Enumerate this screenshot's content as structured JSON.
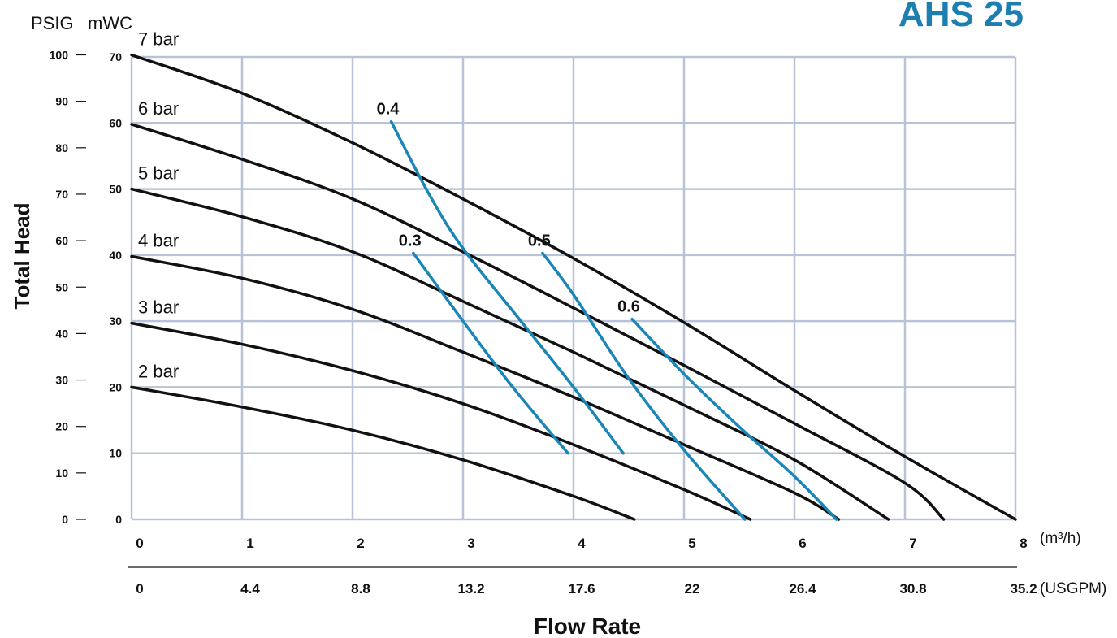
{
  "chart_data": {
    "type": "line",
    "title": "AHS 25",
    "xlabel": "Flow Rate",
    "ylabel": "Total Head",
    "x_unit_primary": "(m³/h)",
    "x_unit_secondary": "(USGPM)",
    "y_unit_left": "PSIG",
    "y_unit_right": "mWC",
    "x_ticks_m3h": [
      "0",
      "1",
      "2",
      "3",
      "4",
      "5",
      "6",
      "7",
      "8"
    ],
    "x_ticks_usgpm": [
      "0",
      "4.4",
      "8.8",
      "13.2",
      "17.6",
      "22",
      "26.4",
      "30.8",
      "35.2"
    ],
    "y_ticks_mwc": [
      "0",
      "10",
      "20",
      "30",
      "40",
      "50",
      "60",
      "70"
    ],
    "y_ticks_psig": [
      "0",
      "10",
      "20",
      "30",
      "40",
      "50",
      "60",
      "70",
      "80",
      "90",
      "100"
    ],
    "xlim": [
      0,
      8
    ],
    "ylim": [
      0,
      70
    ],
    "grid": true,
    "pressure_curves": [
      {
        "name": "7 bar",
        "points": [
          [
            0,
            70.3
          ],
          [
            1,
            64.5
          ],
          [
            2,
            57
          ],
          [
            3,
            48.5
          ],
          [
            4,
            39.5
          ],
          [
            5,
            29.8
          ],
          [
            6,
            19.5
          ],
          [
            7,
            9.5
          ],
          [
            8,
            0
          ]
        ]
      },
      {
        "name": "6 bar",
        "points": [
          [
            0,
            59.8
          ],
          [
            1,
            54.5
          ],
          [
            2,
            48.5
          ],
          [
            3,
            40.5
          ],
          [
            4,
            32
          ],
          [
            5,
            23.3
          ],
          [
            6,
            14.5
          ],
          [
            7,
            5.5
          ],
          [
            7.35,
            0
          ]
        ]
      },
      {
        "name": "5 bar",
        "points": [
          [
            0,
            50
          ],
          [
            1,
            45.8
          ],
          [
            2,
            40.5
          ],
          [
            3,
            33
          ],
          [
            4,
            25.3
          ],
          [
            5,
            17.3
          ],
          [
            6,
            9
          ],
          [
            6.85,
            0
          ]
        ]
      },
      {
        "name": "4 bar",
        "points": [
          [
            0,
            39.8
          ],
          [
            1,
            36.5
          ],
          [
            2,
            31.8
          ],
          [
            3,
            25.3
          ],
          [
            4,
            18.5
          ],
          [
            5,
            11.3
          ],
          [
            6,
            4
          ],
          [
            6.4,
            0
          ]
        ]
      },
      {
        "name": "3 bar",
        "points": [
          [
            0,
            29.7
          ],
          [
            1,
            26.5
          ],
          [
            2,
            22.5
          ],
          [
            3,
            17.5
          ],
          [
            4,
            11.3
          ],
          [
            5,
            4.5
          ],
          [
            5.6,
            0
          ]
        ]
      },
      {
        "name": "2 bar",
        "points": [
          [
            0,
            20
          ],
          [
            1,
            17
          ],
          [
            2,
            13.5
          ],
          [
            3,
            9
          ],
          [
            4,
            3.5
          ],
          [
            4.55,
            0
          ]
        ]
      }
    ],
    "air_curves": [
      {
        "name": "0.3",
        "points": [
          [
            2.55,
            40.3
          ],
          [
            3,
            30
          ],
          [
            3.45,
            20
          ],
          [
            3.95,
            10
          ]
        ]
      },
      {
        "name": "0.4",
        "points": [
          [
            2.35,
            60.2
          ],
          [
            2.7,
            49
          ],
          [
            3,
            41
          ],
          [
            3.5,
            30.5
          ],
          [
            4,
            20
          ],
          [
            4.45,
            10
          ]
        ]
      },
      {
        "name": "0.5",
        "points": [
          [
            3.72,
            40.3
          ],
          [
            4,
            34
          ],
          [
            4.5,
            21.3
          ],
          [
            5,
            10.5
          ],
          [
            5.55,
            0
          ]
        ]
      },
      {
        "name": "0.6",
        "points": [
          [
            4.53,
            30.3
          ],
          [
            5,
            22
          ],
          [
            5.5,
            14
          ],
          [
            6,
            6.5
          ],
          [
            6.38,
            0
          ]
        ]
      }
    ],
    "colors": {
      "pressure": "#111111",
      "air": "#1a86b8",
      "grid": "#b8c4d6",
      "title": "#1c7fb0"
    }
  }
}
